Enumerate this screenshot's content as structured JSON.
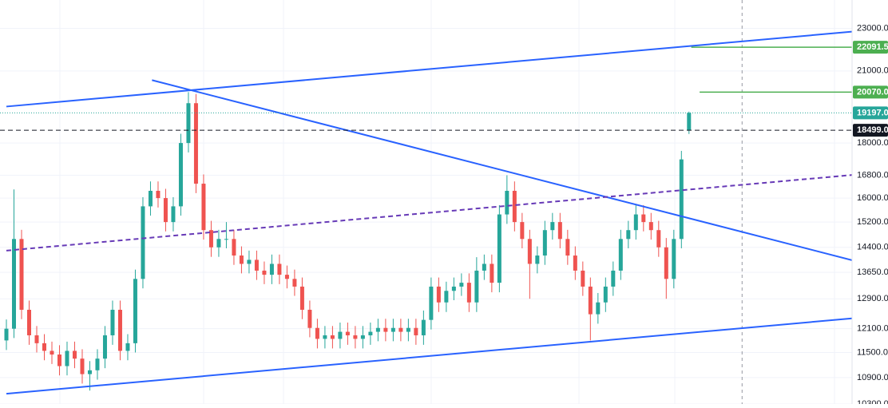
{
  "chart_data": {
    "type": "candlestick",
    "up_color": "#26a69a",
    "down_color": "#ef5350",
    "log_scale": true,
    "grid": true,
    "xlim": [
      0,
      111.5
    ],
    "ylim": [
      10300,
      24440
    ],
    "yticks": [
      {
        "value": 23000,
        "label": "23000.0"
      },
      {
        "value": 21000,
        "label": "21000.0"
      },
      {
        "value": 18000,
        "label": "18000.0"
      },
      {
        "value": 16800,
        "label": "16800.0"
      },
      {
        "value": 16000,
        "label": "16000.0"
      },
      {
        "value": 15200,
        "label": "15200.0"
      },
      {
        "value": 14400,
        "label": "14400.0"
      },
      {
        "value": 13650,
        "label": "13650.0"
      },
      {
        "value": 12900,
        "label": "12900.0"
      },
      {
        "value": 12100,
        "label": "12100.0"
      },
      {
        "value": 11500,
        "label": "11500.0"
      },
      {
        "value": 10900,
        "label": "10900.0"
      },
      {
        "value": 10300,
        "label": "10300.0"
      }
    ],
    "open": [
      11800,
      12100,
      14660,
      12600,
      11930,
      11730,
      11540,
      11450,
      11170,
      11540,
      11350,
      10980,
      11070,
      11350,
      11930,
      12600,
      11540,
      11730,
      13460,
      15720,
      16250,
      16000,
      15200,
      15720,
      18000,
      19600,
      16500,
      14940,
      14400,
      14660,
      14660,
      14150,
      13900,
      14020,
      13700,
      13580,
      13900,
      13580,
      13460,
      13240,
      12600,
      12120,
      11840,
      11930,
      11840,
      12020,
      11930,
      11840,
      11930,
      12020,
      12120,
      12020,
      12120,
      12020,
      12120,
      11930,
      12330,
      13240,
      12800,
      13120,
      13240,
      13350,
      12800,
      13700,
      13900,
      13350,
      15450,
      16250,
      15200,
      14660,
      13900,
      14150,
      14940,
      15200,
      14660,
      14150,
      13700,
      13240,
      12480,
      12800,
      13240,
      13700,
      14660,
      14940,
      15450,
      15200,
      14940,
      14400,
      13460,
      14660,
      18499
    ],
    "high": [
      12340,
      16300,
      14950,
      12850,
      12170,
      11960,
      11770,
      11680,
      11770,
      11770,
      11580,
      11290,
      11580,
      12170,
      12850,
      12850,
      11960,
      13730,
      16030,
      16580,
      16580,
      16320,
      16030,
      18360,
      20070,
      19990,
      16830,
      15240,
      14950,
      15200,
      14950,
      14430,
      14300,
      14300,
      13970,
      14180,
      14180,
      13850,
      13730,
      13500,
      12850,
      12360,
      12170,
      12170,
      12260,
      12260,
      12170,
      12170,
      12260,
      12360,
      12360,
      12360,
      12360,
      12360,
      12360,
      12580,
      13500,
      13500,
      13380,
      13500,
      13620,
      13620,
      14100,
      14180,
      14180,
      15760,
      16800,
      16580,
      15500,
      14950,
      14430,
      15240,
      15500,
      15500,
      14950,
      14430,
      13970,
      13500,
      13060,
      13500,
      13970,
      14950,
      15240,
      15800,
      15760,
      15500,
      15240,
      14690,
      14950,
      17700,
      19250
    ],
    "low": [
      11560,
      11860,
      12350,
      11690,
      11500,
      11310,
      11220,
      10950,
      10950,
      11120,
      10760,
      10600,
      10850,
      11120,
      11690,
      11310,
      11310,
      11500,
      13190,
      15410,
      15680,
      14900,
      14900,
      15410,
      17640,
      16170,
      14640,
      14110,
      14110,
      14370,
      13870,
      13620,
      13620,
      13430,
      13310,
      13310,
      13310,
      13190,
      12980,
      12350,
      11880,
      11600,
      11600,
      11600,
      11600,
      11690,
      11600,
      11600,
      11690,
      11780,
      11780,
      11780,
      11780,
      11780,
      11690,
      11690,
      12080,
      12540,
      12540,
      12860,
      12980,
      12540,
      12540,
      13430,
      13080,
      13080,
      15140,
      14900,
      14370,
      12900,
      13620,
      13870,
      14640,
      14370,
      13870,
      13430,
      12980,
      11800,
      12230,
      12540,
      12980,
      13430,
      14370,
      14640,
      14900,
      14640,
      14110,
      12900,
      13190,
      14370,
      18350
    ],
    "close": [
      12100,
      14660,
      12600,
      11930,
      11730,
      11540,
      11450,
      11170,
      11540,
      11350,
      10980,
      11070,
      11350,
      11930,
      12600,
      11540,
      11730,
      13460,
      15720,
      16250,
      16000,
      15200,
      15720,
      18000,
      19600,
      16500,
      14940,
      14400,
      14660,
      14660,
      14150,
      13900,
      14020,
      13700,
      13580,
      13900,
      13580,
      13460,
      13240,
      12600,
      12120,
      11840,
      11930,
      11840,
      12020,
      11930,
      11840,
      11930,
      12020,
      12120,
      12020,
      12120,
      12020,
      12120,
      11930,
      12330,
      13240,
      12800,
      13120,
      13240,
      13350,
      12800,
      13700,
      13900,
      13350,
      15450,
      16250,
      15200,
      14660,
      13900,
      14150,
      14940,
      15200,
      14660,
      14150,
      13700,
      13240,
      12480,
      12800,
      13240,
      13700,
      14660,
      14940,
      15450,
      15200,
      14940,
      14400,
      13460,
      14660,
      17380,
      19197
    ],
    "trendlines": [
      {
        "points": [
          [
            0,
            19460
          ],
          [
            111.5,
            22840
          ]
        ],
        "color": "#2962ff",
        "style": "solid"
      },
      {
        "points": [
          [
            19.2,
            20590
          ],
          [
            111.5,
            14010
          ]
        ],
        "color": "#2962ff",
        "style": "solid"
      },
      {
        "points": [
          [
            0,
            10530
          ],
          [
            111.5,
            12370
          ]
        ],
        "color": "#2962ff",
        "style": "solid"
      },
      {
        "points": [
          [
            0,
            14300
          ],
          [
            111.5,
            16810
          ]
        ],
        "color": "#673ab7",
        "style": "dashed"
      }
    ],
    "price_levels": [
      {
        "value": 22091.5,
        "label": "22091.5",
        "color": "#4caf50",
        "start": 90.3,
        "style": "solid",
        "text_color": "#ffffff"
      },
      {
        "value": 20070,
        "label": "20070.0",
        "color": "#4caf50",
        "start": 91.4,
        "style": "solid",
        "text_color": "#ffffff"
      },
      {
        "value": 19197,
        "label": "19197.0",
        "color": "#26a69a",
        "start": 0,
        "style": "dotted",
        "text_color": "#ffffff"
      },
      {
        "value": 18499,
        "label": "18499.0",
        "color": "#131722",
        "start": 0,
        "style": "dashed",
        "text_color": "#ffffff"
      }
    ],
    "vline": 97
  }
}
